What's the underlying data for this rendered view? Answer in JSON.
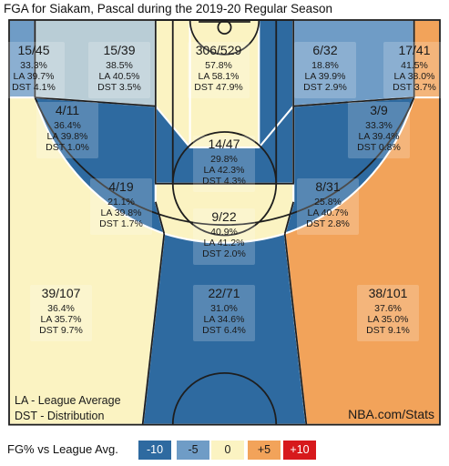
{
  "title": "FGA for Siakam, Pascal during the 2019-20 Regular Season",
  "footer": {
    "legend_line1": "LA - League Average",
    "legend_line2": "DST - Distribution",
    "source": "NBA.com/Stats"
  },
  "scale": {
    "label": "FG% vs League Avg.",
    "items": [
      {
        "label": "-10",
        "color": "#2e6aa0",
        "text_color": "#ffffff"
      },
      {
        "label": "-5",
        "color": "#6f9cc6",
        "text_color": "#1a1a1a"
      },
      {
        "label": "0",
        "color": "#fbf3c2",
        "text_color": "#1a1a1a"
      },
      {
        "label": "+5",
        "color": "#f2a35a",
        "text_color": "#1a1a1a"
      },
      {
        "label": "+10",
        "color": "#d7191c",
        "text_color": "#ffffff"
      }
    ]
  },
  "chart_data": {
    "type": "shot-chart",
    "player": "Siakam, Pascal",
    "season": "2019-20 Regular Season",
    "zones": [
      {
        "name": "Left Corner 3",
        "fg": "15/45",
        "fgm": 15,
        "fga": 45,
        "fg_pct": "33.3%",
        "la": "LA 39.7%",
        "dst": "DST 4.1%",
        "color": "#6f9cc6"
      },
      {
        "name": "Left Baseline Mid-Range",
        "fg": "4/11",
        "fgm": 4,
        "fga": 11,
        "fg_pct": "36.4%",
        "la": "LA 39.8%",
        "dst": "DST 1.0%",
        "color": "#b9cdd6"
      },
      {
        "name": "Left Elbow Mid-Range (Upper)",
        "fg": "15/39",
        "fgm": 15,
        "fga": 39,
        "fg_pct": "38.5%",
        "la": "LA 40.5%",
        "dst": "DST 3.5%",
        "color": "#fbf3c2"
      },
      {
        "name": "Restricted Area",
        "fg": "306/529",
        "fgm": 306,
        "fga": 529,
        "fg_pct": "57.8%",
        "la": "LA 58.1%",
        "dst": "DST 47.9%",
        "color": "#fbf3c2"
      },
      {
        "name": "Right Elbow Mid-Range (Upper)",
        "fg": "6/32",
        "fgm": 6,
        "fga": 32,
        "fg_pct": "18.8%",
        "la": "LA 39.9%",
        "dst": "DST 2.9%",
        "color": "#2e6aa0"
      },
      {
        "name": "Right Baseline Mid-Range",
        "fg": "3/9",
        "fgm": 3,
        "fga": 9,
        "fg_pct": "33.3%",
        "la": "LA 39.4%",
        "dst": "DST 0.8%",
        "color": "#6f9cc6"
      },
      {
        "name": "Right Corner 3",
        "fg": "17/41",
        "fgm": 17,
        "fga": 41,
        "fg_pct": "41.5%",
        "la": "LA 38.0%",
        "dst": "DST 3.7%",
        "color": "#f2a35a"
      },
      {
        "name": "In The Paint (Non-RA)",
        "fg": "14/47",
        "fgm": 14,
        "fga": 47,
        "fg_pct": "29.8%",
        "la": "LA 42.3%",
        "dst": "DST 4.3%",
        "color": "#2e6aa0"
      },
      {
        "name": "Left Wing Mid-Range",
        "fg": "4/19",
        "fgm": 4,
        "fga": 19,
        "fg_pct": "21.1%",
        "la": "LA 39.8%",
        "dst": "DST 1.7%",
        "color": "#2e6aa0"
      },
      {
        "name": "Right Wing Mid-Range",
        "fg": "8/31",
        "fgm": 8,
        "fga": 31,
        "fg_pct": "25.8%",
        "la": "LA 40.7%",
        "dst": "DST 2.8%",
        "color": "#2e6aa0"
      },
      {
        "name": "Top Key Mid-Range",
        "fg": "9/22",
        "fgm": 9,
        "fga": 22,
        "fg_pct": "40.9%",
        "la": "LA 41.2%",
        "dst": "DST 2.0%",
        "color": "#fbf3c2"
      },
      {
        "name": "Left Wing 3",
        "fg": "39/107",
        "fgm": 39,
        "fga": 107,
        "fg_pct": "36.4%",
        "la": "LA 35.7%",
        "dst": "DST 9.7%",
        "color": "#fbf3c2"
      },
      {
        "name": "Top of Key 3",
        "fg": "22/71",
        "fgm": 22,
        "fga": 71,
        "fg_pct": "31.0%",
        "la": "LA 34.6%",
        "dst": "DST 6.4%",
        "color": "#2e6aa0"
      },
      {
        "name": "Right Wing 3",
        "fg": "38/101",
        "fgm": 38,
        "fga": 101,
        "fg_pct": "37.6%",
        "la": "LA 35.0%",
        "dst": "DST 9.1%",
        "color": "#f2a35a"
      }
    ]
  }
}
